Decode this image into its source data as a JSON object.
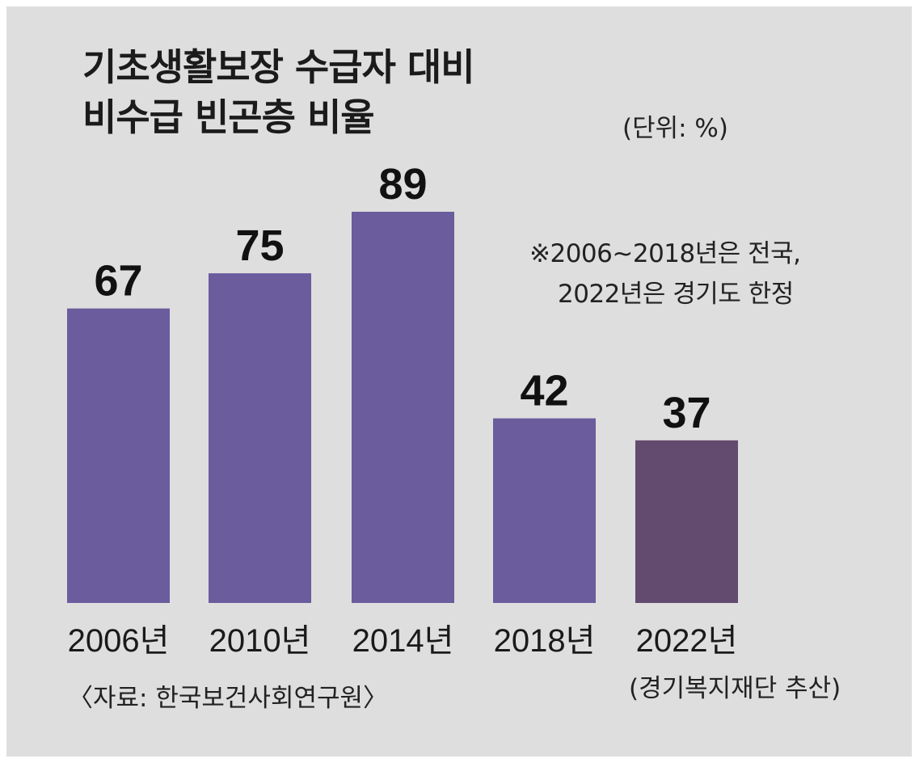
{
  "header": {
    "title_line1": "기초생활보장 수급자 대비",
    "title_line2": "비수급 빈곤층 비율",
    "unit": "(단위: %)"
  },
  "note": {
    "line1": "※2006~2018년은 전국,",
    "line2": "2022년은 경기도 한정"
  },
  "footer": {
    "source": "〈자료: 한국보건사회연구원〉",
    "estimate_note": "(경기복지재단 추산)"
  },
  "colors": {
    "background": "#dedede",
    "bar_primary": "#6a5c9d",
    "bar_highlight": "#634a6f"
  },
  "chart_data": {
    "type": "bar",
    "title": "기초생활보장 수급자 대비 비수급 빈곤층 비율",
    "unit": "%",
    "categories": [
      "2006년",
      "2010년",
      "2014년",
      "2018년",
      "2022년"
    ],
    "values": [
      67,
      75,
      89,
      42,
      37
    ],
    "data_labels": [
      "67",
      "75",
      "89",
      "42",
      "37"
    ],
    "highlight_index": 4,
    "xlabel": "",
    "ylabel": "",
    "ylim": [
      0,
      100
    ],
    "grid": false,
    "axes_visible": false
  }
}
